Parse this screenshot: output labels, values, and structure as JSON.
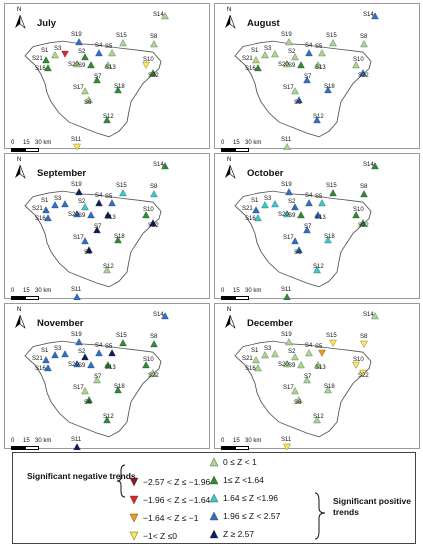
{
  "colors": {
    "neg_strong": "#8b1c1c",
    "neg_mod": "#e0251b",
    "neg_weak": "#f39c12",
    "neg_slight": "#ffe84a",
    "pos_slight": "#a8d88a",
    "pos_weak": "#2e8b2e",
    "pos_mod": "#33cccc",
    "pos_str": "#2b6fc9",
    "pos_vstr": "#0a1f5c"
  },
  "stations": [
    "S1",
    "S2",
    "S3",
    "S4",
    "S5",
    "S6",
    "S7",
    "S8",
    "S9",
    "S10",
    "S11",
    "S12",
    "S13",
    "S14",
    "S15",
    "S16",
    "S17",
    "S18",
    "S19",
    "S20",
    "S21",
    "S22"
  ],
  "scale": {
    "zero": "0",
    "mid": "15",
    "end": "30 km"
  },
  "north": "N",
  "panels": [
    {
      "title": "July",
      "c": {
        "S1": "pos_slight",
        "S2": "pos_weak",
        "S3": "neg_mod",
        "S4": "pos_str",
        "S5": "pos_slight",
        "S6": "pos_slight",
        "S7": "pos_weak",
        "S8": "pos_slight",
        "S9": "pos_weak",
        "S10": "neg_slight",
        "S11": "neg_slight",
        "S12": "pos_weak",
        "S13": "pos_slight",
        "S14": "pos_slight",
        "S15": "pos_slight",
        "S16": "pos_weak",
        "S17": "pos_slight",
        "S18": "pos_weak",
        "S19": "pos_str",
        "S20": "pos_slight",
        "S21": "pos_weak",
        "S22": "pos_weak"
      }
    },
    {
      "title": "August",
      "c": {
        "S1": "pos_slight",
        "S2": "pos_slight",
        "S3": "pos_slight",
        "S4": "pos_str",
        "S5": "pos_slight",
        "S6": "pos_str",
        "S7": "pos_str",
        "S8": "pos_slight",
        "S9": "pos_weak",
        "S10": "pos_slight",
        "S11": "pos_slight",
        "S12": "pos_str",
        "S13": "pos_slight",
        "S14": "pos_str",
        "S15": "pos_slight",
        "S16": "pos_weak",
        "S17": "pos_slight",
        "S18": "pos_str",
        "S19": "pos_slight",
        "S20": "pos_slight",
        "S21": "pos_slight",
        "S22": "pos_str"
      }
    },
    {
      "title": "September",
      "c": {
        "S1": "pos_str",
        "S2": "pos_mod",
        "S3": "pos_str",
        "S4": "pos_vstr",
        "S5": "pos_str",
        "S6": "pos_vstr",
        "S7": "pos_vstr",
        "S8": "pos_mod",
        "S9": "pos_str",
        "S10": "pos_weak",
        "S11": "pos_str",
        "S12": "pos_slight",
        "S13": "pos_vstr",
        "S14": "pos_weak",
        "S15": "pos_mod",
        "S16": "pos_str",
        "S17": "pos_str",
        "S18": "pos_weak",
        "S19": "pos_vstr",
        "S20": "pos_str",
        "S21": "pos_str",
        "S22": "pos_vstr"
      }
    },
    {
      "title": "October",
      "c": {
        "S1": "pos_mod",
        "S2": "pos_str",
        "S3": "pos_mod",
        "S4": "pos_str",
        "S5": "pos_mod",
        "S6": "pos_str",
        "S7": "pos_str",
        "S8": "pos_weak",
        "S9": "pos_weak",
        "S10": "pos_weak",
        "S11": "pos_weak",
        "S12": "pos_mod",
        "S13": "pos_str",
        "S14": "pos_weak",
        "S15": "pos_weak",
        "S16": "pos_mod",
        "S17": "pos_str",
        "S18": "pos_mod",
        "S19": "pos_str",
        "S20": "pos_mod",
        "S21": "pos_str",
        "S22": "pos_weak"
      }
    },
    {
      "title": "November",
      "c": {
        "S1": "pos_str",
        "S2": "pos_vstr",
        "S3": "pos_str",
        "S4": "pos_str",
        "S5": "pos_vstr",
        "S6": "pos_weak",
        "S7": "pos_slight",
        "S8": "pos_weak",
        "S9": "pos_str",
        "S10": "pos_weak",
        "S11": "pos_vstr",
        "S12": "pos_weak",
        "S13": "pos_weak",
        "S14": "pos_str",
        "S15": "pos_weak",
        "S16": "pos_str",
        "S17": "pos_slight",
        "S18": "pos_weak",
        "S19": "pos_str",
        "S20": "pos_str",
        "S21": "pos_str",
        "S22": "pos_slight"
      }
    },
    {
      "title": "December",
      "c": {
        "S1": "pos_slight",
        "S2": "pos_slight",
        "S3": "pos_slight",
        "S4": "pos_slight",
        "S5": "neg_weak",
        "S6": "pos_slight",
        "S7": "pos_slight",
        "S8": "neg_slight",
        "S9": "pos_slight",
        "S10": "neg_slight",
        "S11": "neg_slight",
        "S12": "pos_slight",
        "S13": "pos_slight",
        "S14": "pos_slight",
        "S15": "neg_slight",
        "S16": "pos_slight",
        "S17": "pos_slight",
        "S18": "pos_slight",
        "S19": "pos_slight",
        "S20": "pos_slight",
        "S21": "pos_slight",
        "S22": "neg_slight"
      }
    }
  ],
  "legend": {
    "negative_title": "Significant negative trends",
    "positive_title": "Significant positive trends",
    "negative": [
      {
        "key": "neg_strong",
        "label": "−2.57 < Z ≤ −1.96"
      },
      {
        "key": "neg_mod",
        "label": "−1.96 < Z ≤ −1.64"
      },
      {
        "key": "neg_weak",
        "label": "−1.64 < Z ≤ −1"
      },
      {
        "key": "neg_slight",
        "label": "−1< Z ≤0"
      }
    ],
    "positive": [
      {
        "key": "pos_slight",
        "label": "0 ≤ Z < 1"
      },
      {
        "key": "pos_weak",
        "label": "1≤ Z <1.64"
      },
      {
        "key": "pos_mod",
        "label": "1.64 ≤ Z <1.96"
      },
      {
        "key": "pos_str",
        "label": "1.96 ≤ Z < 2.57"
      },
      {
        "key": "pos_vstr",
        "label": "Z ≥ 2.57"
      }
    ]
  }
}
